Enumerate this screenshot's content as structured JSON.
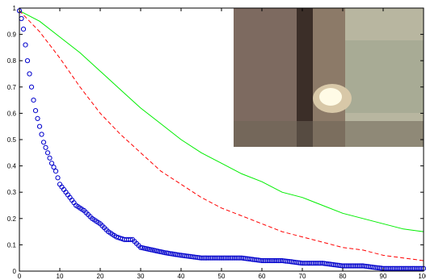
{
  "chart_data": {
    "type": "line",
    "xlim": [
      0,
      100
    ],
    "ylim": [
      0,
      1
    ],
    "grid": false,
    "x_ticks": [
      0,
      10,
      20,
      30,
      40,
      50,
      60,
      70,
      80,
      90,
      100
    ],
    "y_ticks": [
      0,
      0.1,
      0.2,
      0.3,
      0.4,
      0.5,
      0.6,
      0.7,
      0.8,
      0.9,
      1
    ],
    "x_tick_labels": [
      "0",
      "10",
      "20",
      "30",
      "40",
      "50",
      "60",
      "70",
      "80",
      "90",
      "100"
    ],
    "y_tick_labels": [
      "0",
      "0.1",
      "0.2",
      "0.3",
      "0.4",
      "0.5",
      "0.6",
      "0.7",
      "0.8",
      "0.9",
      "1"
    ],
    "inset_image": "blurry night scene with a bright light source",
    "series": [
      {
        "style": "solid line",
        "color": "#00ee00",
        "x": [
          0,
          5,
          10,
          15,
          20,
          25,
          30,
          35,
          40,
          45,
          50,
          55,
          60,
          65,
          70,
          75,
          80,
          85,
          90,
          95,
          100
        ],
        "y": [
          0.99,
          0.95,
          0.89,
          0.83,
          0.76,
          0.69,
          0.62,
          0.56,
          0.5,
          0.45,
          0.41,
          0.37,
          0.34,
          0.3,
          0.28,
          0.25,
          0.22,
          0.2,
          0.18,
          0.16,
          0.15
        ]
      },
      {
        "style": "dashed line",
        "color": "#ff0000",
        "x": [
          0,
          5,
          10,
          15,
          20,
          25,
          30,
          35,
          40,
          45,
          50,
          55,
          60,
          65,
          70,
          75,
          80,
          85,
          90,
          95,
          100
        ],
        "y": [
          0.99,
          0.91,
          0.81,
          0.7,
          0.6,
          0.52,
          0.45,
          0.38,
          0.33,
          0.28,
          0.24,
          0.21,
          0.18,
          0.15,
          0.13,
          0.11,
          0.09,
          0.08,
          0.06,
          0.05,
          0.04
        ]
      },
      {
        "style": "circle markers",
        "color": "#0000cc",
        "x": [
          0,
          0.5,
          1,
          1.5,
          2,
          2.5,
          3,
          3.5,
          4,
          5,
          6,
          7,
          8,
          9,
          10,
          12,
          14,
          16,
          18,
          20,
          22,
          24,
          26,
          28,
          30,
          33,
          36,
          40,
          45,
          50,
          55,
          60,
          65,
          70,
          75,
          80,
          85,
          90,
          95,
          100
        ],
        "y": [
          0.99,
          0.96,
          0.92,
          0.86,
          0.8,
          0.75,
          0.7,
          0.65,
          0.61,
          0.55,
          0.49,
          0.45,
          0.41,
          0.38,
          0.33,
          0.29,
          0.25,
          0.23,
          0.2,
          0.18,
          0.15,
          0.13,
          0.12,
          0.12,
          0.09,
          0.08,
          0.07,
          0.06,
          0.05,
          0.05,
          0.05,
          0.04,
          0.04,
          0.03,
          0.03,
          0.02,
          0.02,
          0.01,
          0.01,
          0.01
        ]
      }
    ]
  },
  "colors": {
    "axes": "#000000",
    "background": "#ffffff",
    "inset_dark": "#3b2e28",
    "inset_mid": "#8c7a68",
    "inset_light": "#b8b6a0",
    "inset_glow": "#fffbe6"
  }
}
